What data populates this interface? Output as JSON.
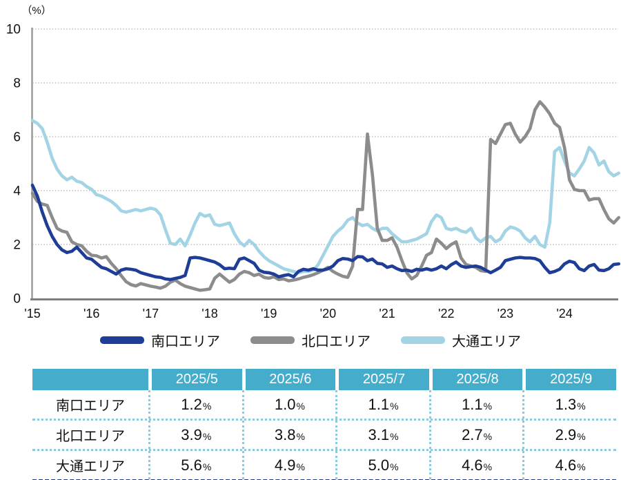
{
  "accent_colors": {
    "south_blue": "#1E3D96",
    "north_gray": "#8C8C8C",
    "odori_lightblue": "#A3D4E6",
    "table_header_bg": "#45ADCB",
    "table_dotted_border": "#8FC8DB",
    "table_bottom_border": "#26367B",
    "gridline": "#ADADAD",
    "axis": "#8A8A8A"
  },
  "chart_data": {
    "type": "line",
    "title": "",
    "y_axis_label": "（%）",
    "ylim": [
      0,
      10
    ],
    "y_ticks": [
      0,
      2,
      4,
      6,
      8,
      10
    ],
    "grid": "horizontal dotted",
    "legend_position": "bottom center",
    "x_tick_labels": [
      "'15",
      "'16",
      "'17",
      "'18",
      "'19",
      "'20",
      "'21",
      "'22",
      "'23",
      "'24"
    ],
    "x_unit": "monthly, 2015-01 through 2024-12",
    "series": [
      {
        "id": "south",
        "name": "南口エリア",
        "color": "#1E3D96",
        "values": [
          4.2,
          3.8,
          3.2,
          2.7,
          2.3,
          2.0,
          1.8,
          1.7,
          1.75,
          1.9,
          1.7,
          1.5,
          1.45,
          1.3,
          1.15,
          1.1,
          1.0,
          0.9,
          1.05,
          1.1,
          1.08,
          1.05,
          0.95,
          0.9,
          0.85,
          0.8,
          0.78,
          0.72,
          0.7,
          0.74,
          0.78,
          0.85,
          1.5,
          1.52,
          1.5,
          1.45,
          1.4,
          1.35,
          1.25,
          1.1,
          1.12,
          1.1,
          1.45,
          1.5,
          1.4,
          1.3,
          1.05,
          0.97,
          0.95,
          0.9,
          0.8,
          0.85,
          0.88,
          0.8,
          1.0,
          1.08,
          1.05,
          1.1,
          1.05,
          1.05,
          1.1,
          1.2,
          1.4,
          1.48,
          1.46,
          1.4,
          1.55,
          1.54,
          1.4,
          1.46,
          1.3,
          1.28,
          1.15,
          1.2,
          1.1,
          1.03,
          1.05,
          1.0,
          1.08,
          1.05,
          1.1,
          1.05,
          1.1,
          1.2,
          1.1,
          1.25,
          1.35,
          1.2,
          1.15,
          1.18,
          1.2,
          1.15,
          1.05,
          0.95,
          1.05,
          1.15,
          1.4,
          1.45,
          1.5,
          1.52,
          1.5,
          1.5,
          1.48,
          1.4,
          1.15,
          0.95,
          1.0,
          1.08,
          1.28,
          1.38,
          1.33,
          1.1,
          1.03,
          1.2,
          1.26,
          1.05,
          1.03,
          1.1,
          1.26,
          1.28
        ]
      },
      {
        "id": "north",
        "name": "北口エリア",
        "color": "#8C8C8C",
        "values": [
          3.9,
          3.6,
          3.5,
          3.45,
          3.0,
          2.6,
          2.5,
          2.45,
          2.1,
          2.0,
          1.95,
          1.75,
          1.6,
          1.58,
          1.5,
          1.55,
          1.3,
          1.1,
          0.85,
          0.62,
          0.51,
          0.46,
          0.55,
          0.5,
          0.45,
          0.42,
          0.38,
          0.45,
          0.6,
          0.68,
          0.55,
          0.45,
          0.4,
          0.35,
          0.3,
          0.32,
          0.35,
          0.75,
          0.9,
          0.75,
          0.6,
          0.7,
          0.9,
          1.0,
          0.95,
          0.85,
          0.9,
          0.78,
          0.75,
          0.8,
          0.7,
          0.72,
          0.65,
          0.68,
          0.72,
          0.78,
          0.82,
          0.88,
          0.95,
          1.05,
          1.15,
          1.0,
          0.9,
          0.82,
          0.78,
          1.2,
          3.3,
          3.3,
          6.1,
          4.6,
          2.6,
          2.15,
          2.15,
          2.25,
          1.9,
          1.4,
          0.95,
          0.72,
          0.85,
          1.2,
          1.6,
          1.7,
          2.2,
          2.05,
          1.85,
          2.0,
          2.1,
          1.5,
          1.26,
          1.2,
          1.15,
          1.03,
          1.0,
          5.9,
          5.75,
          6.1,
          6.45,
          6.5,
          6.1,
          5.8,
          6.0,
          6.3,
          7.0,
          7.3,
          7.1,
          6.85,
          6.5,
          6.35,
          5.6,
          4.4,
          4.05,
          4.0,
          4.0,
          3.65,
          3.7,
          3.7,
          3.3,
          2.95,
          2.8,
          3.0
        ]
      },
      {
        "id": "odori",
        "name": "大通エリア",
        "color": "#A3D4E6",
        "values": [
          6.6,
          6.5,
          6.3,
          5.8,
          5.2,
          4.8,
          4.55,
          4.4,
          4.5,
          4.35,
          4.3,
          4.15,
          4.05,
          3.85,
          3.8,
          3.7,
          3.6,
          3.45,
          3.25,
          3.2,
          3.25,
          3.3,
          3.25,
          3.3,
          3.35,
          3.3,
          3.1,
          2.55,
          2.05,
          2.0,
          2.2,
          1.95,
          2.35,
          2.8,
          3.15,
          3.05,
          3.1,
          2.75,
          2.7,
          2.75,
          2.8,
          2.4,
          2.1,
          1.95,
          2.15,
          2.0,
          1.75,
          1.55,
          1.4,
          1.3,
          1.2,
          1.1,
          1.05,
          1.0,
          0.95,
          1.0,
          1.0,
          1.05,
          1.25,
          1.6,
          1.95,
          2.3,
          2.5,
          2.65,
          2.9,
          3.0,
          2.8,
          2.7,
          2.75,
          2.6,
          2.5,
          2.6,
          2.6,
          2.4,
          2.25,
          2.1,
          2.1,
          2.15,
          2.2,
          2.3,
          2.4,
          2.85,
          3.1,
          3.0,
          2.6,
          2.55,
          2.6,
          2.5,
          2.45,
          2.6,
          2.25,
          2.1,
          2.25,
          2.3,
          2.1,
          2.2,
          2.5,
          2.65,
          2.6,
          2.5,
          2.25,
          2.1,
          2.3,
          2.0,
          1.9,
          2.8,
          5.45,
          5.6,
          5.1,
          4.66,
          4.55,
          4.8,
          5.1,
          5.6,
          5.4,
          4.95,
          5.1,
          4.7,
          4.55,
          4.65
        ]
      }
    ]
  },
  "table": {
    "columns": [
      "",
      "2025/5",
      "2025/6",
      "2025/7",
      "2025/8",
      "2025/9"
    ],
    "unit_suffix": "%",
    "rows": [
      {
        "label": "南口エリア",
        "values": [
          "1.2",
          "1.0",
          "1.1",
          "1.1",
          "1.3"
        ]
      },
      {
        "label": "北口エリア",
        "values": [
          "3.9",
          "3.8",
          "3.1",
          "2.7",
          "2.9"
        ]
      },
      {
        "label": "大通エリア",
        "values": [
          "5.6",
          "4.9",
          "5.0",
          "4.6",
          "4.6"
        ]
      }
    ]
  }
}
